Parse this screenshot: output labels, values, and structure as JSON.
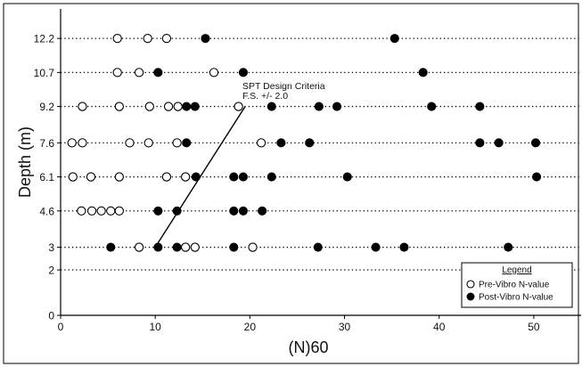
{
  "chart_data": {
    "type": "scatter",
    "xlabel": "(N)60",
    "ylabel": "Depth (m)",
    "xlim": [
      0,
      55
    ],
    "ylim": [
      0,
      13.5
    ],
    "x_ticks": [
      0,
      10,
      20,
      30,
      40,
      50
    ],
    "y_ticks": [
      "0",
      "2",
      "3",
      "4.6",
      "6.1",
      "7.6",
      "9.2",
      "10.7",
      "12.2"
    ],
    "dotted_gridlines_at_depth": [
      2,
      3,
      4.6,
      6.1,
      7.6,
      9.2,
      10.7,
      12.2
    ],
    "legend": {
      "title": "Legend",
      "placement": "bottom-right",
      "entries": [
        "Pre-Vibro N-value",
        "Post-Vibro N-value"
      ]
    },
    "annotation": {
      "lines": [
        "SPT Design Criteria",
        "F.S. +/- 2.0"
      ],
      "criteria_line": [
        [
          10,
          3
        ],
        [
          19.5,
          9.2
        ]
      ]
    },
    "series": [
      {
        "name": "Pre-Vibro N-value",
        "marker": "open-circle",
        "points": [
          [
            6,
            12.2
          ],
          [
            9.2,
            12.2
          ],
          [
            11.2,
            12.2
          ],
          [
            6,
            10.7
          ],
          [
            8.3,
            10.7
          ],
          [
            16.2,
            10.7
          ],
          [
            2.3,
            9.2
          ],
          [
            6.2,
            9.2
          ],
          [
            9.4,
            9.2
          ],
          [
            11.4,
            9.2
          ],
          [
            12.4,
            9.2
          ],
          [
            18.8,
            9.2
          ],
          [
            1.2,
            7.6
          ],
          [
            2.3,
            7.6
          ],
          [
            7.3,
            7.6
          ],
          [
            9.3,
            7.6
          ],
          [
            12.3,
            7.6
          ],
          [
            21.2,
            7.6
          ],
          [
            1.3,
            6.1
          ],
          [
            3.2,
            6.1
          ],
          [
            6.2,
            6.1
          ],
          [
            11.2,
            6.1
          ],
          [
            13.2,
            6.1
          ],
          [
            2.2,
            4.6
          ],
          [
            3.3,
            4.6
          ],
          [
            4.3,
            4.6
          ],
          [
            5.3,
            4.6
          ],
          [
            6.2,
            4.6
          ],
          [
            8.3,
            3
          ],
          [
            13.2,
            3
          ],
          [
            14.2,
            3
          ],
          [
            20.3,
            3
          ]
        ]
      },
      {
        "name": "Post-Vibro N-value",
        "marker": "filled-circle",
        "points": [
          [
            15.3,
            12.2
          ],
          [
            35.3,
            12.2
          ],
          [
            10.3,
            10.7
          ],
          [
            19.3,
            10.7
          ],
          [
            38.3,
            10.7
          ],
          [
            13.3,
            9.2
          ],
          [
            14.2,
            9.2
          ],
          [
            22.3,
            9.2
          ],
          [
            27.3,
            9.2
          ],
          [
            29.2,
            9.2
          ],
          [
            39.2,
            9.2
          ],
          [
            44.3,
            9.2
          ],
          [
            13.3,
            7.6
          ],
          [
            23.3,
            7.6
          ],
          [
            26.3,
            7.6
          ],
          [
            44.3,
            7.6
          ],
          [
            46.3,
            7.6
          ],
          [
            50.2,
            7.6
          ],
          [
            14.3,
            6.1
          ],
          [
            18.3,
            6.1
          ],
          [
            19.3,
            6.1
          ],
          [
            22.3,
            6.1
          ],
          [
            30.3,
            6.1
          ],
          [
            50.3,
            6.1
          ],
          [
            10.3,
            4.6
          ],
          [
            12.3,
            4.6
          ],
          [
            18.3,
            4.6
          ],
          [
            19.3,
            4.6
          ],
          [
            21.3,
            4.6
          ],
          [
            5.3,
            3
          ],
          [
            10.3,
            3
          ],
          [
            12.3,
            3
          ],
          [
            18.3,
            3
          ],
          [
            27.2,
            3
          ],
          [
            33.3,
            3
          ],
          [
            36.3,
            3
          ],
          [
            47.3,
            3
          ]
        ]
      }
    ]
  }
}
